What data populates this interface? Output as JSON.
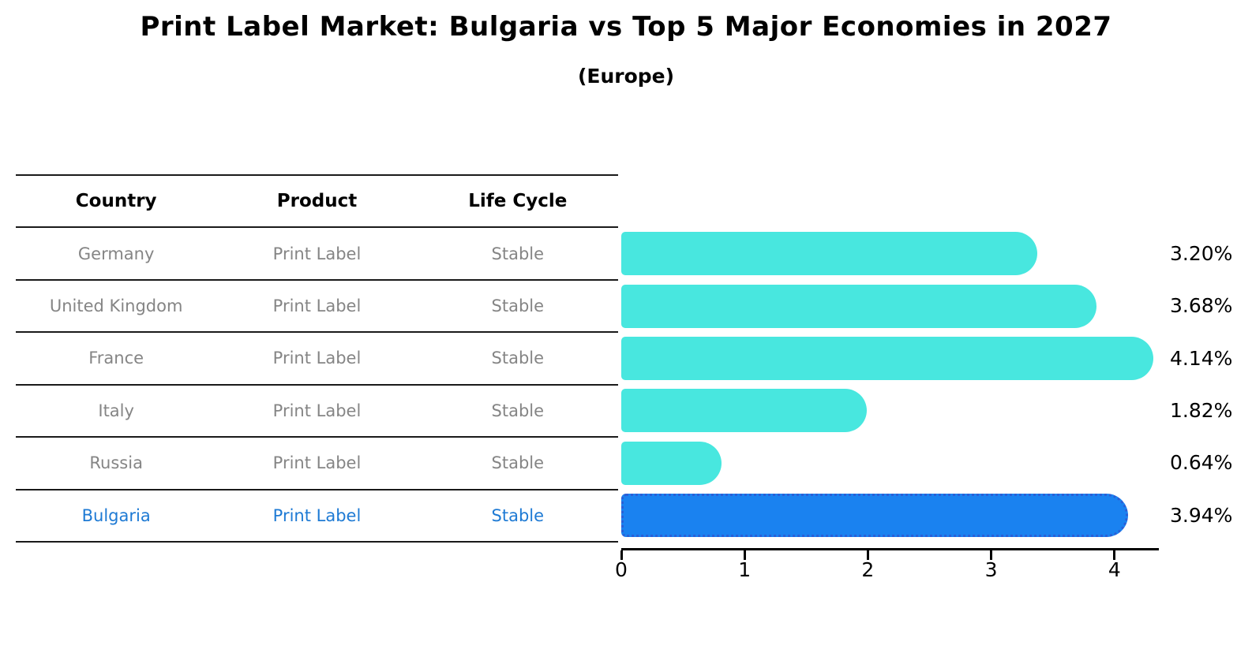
{
  "title": "Print Label Market: Bulgaria vs Top 5 Major Economies in 2027",
  "subtitle": "(Europe)",
  "colors": {
    "bar_default": "#48E7DF",
    "bar_highlight": "#1A82F0",
    "highlight_border": "#2B5FD6",
    "highlight_text": "#1E7AD4",
    "muted_text": "#858585",
    "separator_line": "#1a1a1a",
    "axis": "#000000"
  },
  "table": {
    "columns": [
      "Country",
      "Product",
      "Life Cycle"
    ],
    "rows": [
      {
        "country": "Germany",
        "product": "Print Label",
        "life_cycle": "Stable",
        "highlight": false
      },
      {
        "country": "United Kingdom",
        "product": "Print Label",
        "life_cycle": "Stable",
        "highlight": false
      },
      {
        "country": "France",
        "product": "Print Label",
        "life_cycle": "Stable",
        "highlight": false
      },
      {
        "country": "Italy",
        "product": "Print Label",
        "life_cycle": "Stable",
        "highlight": false
      },
      {
        "country": "Russia",
        "product": "Print Label",
        "life_cycle": "Stable",
        "highlight": false
      },
      {
        "country": "Bulgaria",
        "product": "Print Label",
        "life_cycle": "Stable",
        "highlight": true
      }
    ]
  },
  "chart_data": {
    "type": "bar",
    "orientation": "horizontal",
    "title": "Print Label Market: Bulgaria vs Top 5 Major Economies in 2027",
    "subtitle": "(Europe)",
    "categories": [
      "Germany",
      "United Kingdom",
      "France",
      "Italy",
      "Russia",
      "Bulgaria"
    ],
    "values": [
      3.2,
      3.68,
      4.14,
      1.82,
      0.64,
      3.94
    ],
    "value_labels": [
      "3.20%",
      "3.68%",
      "4.14%",
      "1.82%",
      "0.64%",
      "3.94%"
    ],
    "value_suffix": "%",
    "highlight_index": 5,
    "xlabel": "",
    "ylabel": "",
    "xlim": [
      0,
      4.36
    ],
    "xticks": [
      0,
      1,
      2,
      3,
      4
    ],
    "grid": false,
    "legend": "none"
  }
}
